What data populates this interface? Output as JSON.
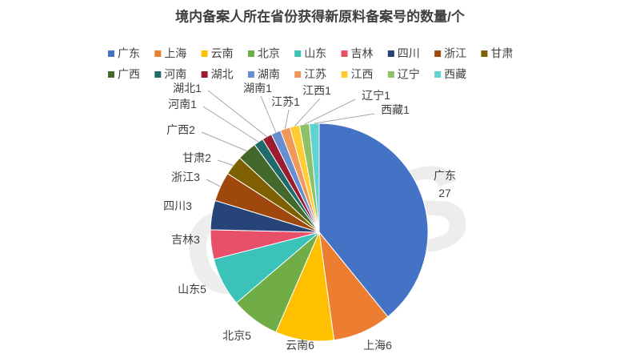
{
  "chart_data": {
    "type": "pie",
    "title": "境内备案人所在省份获得新原料备案号的数量/个",
    "watermark": "CIRS",
    "categories": [
      "广东",
      "上海",
      "云南",
      "北京",
      "山东",
      "吉林",
      "四川",
      "浙江",
      "甘肃",
      "广西",
      "河南",
      "湖北",
      "湖南",
      "江苏",
      "江西",
      "辽宁",
      "西藏"
    ],
    "values": [
      27,
      6,
      6,
      5,
      5,
      3,
      3,
      3,
      2,
      2,
      1,
      1,
      1,
      1,
      1,
      1,
      1
    ],
    "colors": [
      "#4472c4",
      "#ed7d31",
      "#ffc000",
      "#70ad47",
      "#3cc3b9",
      "#e8506a",
      "#264478",
      "#9e480e",
      "#7f6000",
      "#43682b",
      "#1f6b6b",
      "#9b1b30",
      "#698ed0",
      "#f1975a",
      "#ffcd33",
      "#8cc168",
      "#5fd3d0"
    ],
    "legend": "top"
  }
}
